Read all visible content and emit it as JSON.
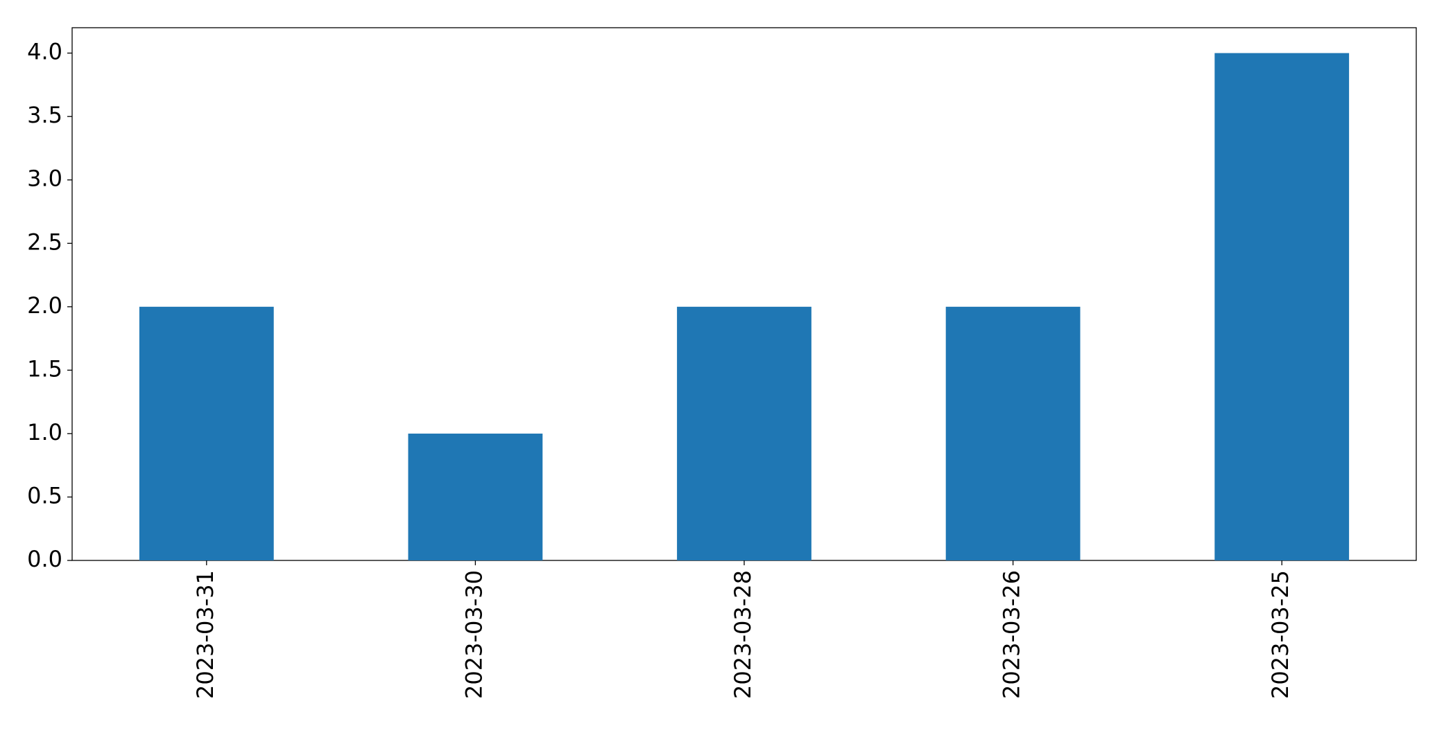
{
  "chart_data": {
    "type": "bar",
    "categories": [
      "2023-03-31",
      "2023-03-30",
      "2023-03-28",
      "2023-03-26",
      "2023-03-25"
    ],
    "values": [
      2,
      1,
      2,
      2,
      4
    ],
    "color": "#1f77b4",
    "ylim": [
      0,
      4.2
    ],
    "yticks": [
      {
        "value": 0,
        "label": "0.0"
      },
      {
        "value": 0.5,
        "label": "0.5"
      },
      {
        "value": 1,
        "label": "1.0"
      },
      {
        "value": 1.5,
        "label": "1.5"
      },
      {
        "value": 2,
        "label": "2.0"
      },
      {
        "value": 2.5,
        "label": "2.5"
      },
      {
        "value": 3,
        "label": "3.0"
      },
      {
        "value": 3.5,
        "label": "3.5"
      },
      {
        "value": 4,
        "label": "4.0"
      }
    ],
    "grid": false
  }
}
